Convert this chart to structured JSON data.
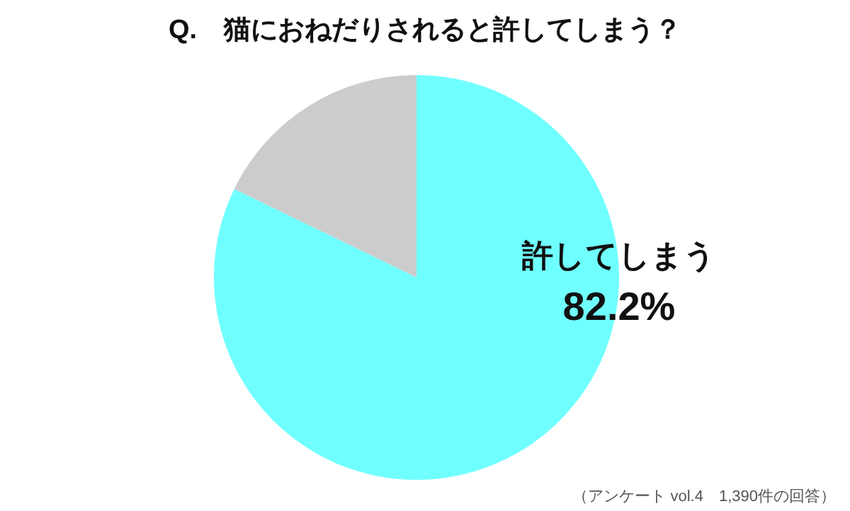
{
  "chart_data": {
    "type": "pie",
    "title": "Q.　猫におねだりされると許してしまう？",
    "categories": [
      "許してしまう",
      null
    ],
    "values": [
      82.2,
      17.8
    ],
    "colors": [
      "#70ffff",
      "#cccccc"
    ],
    "value_labels": [
      "82.2%",
      null
    ],
    "annotations": [
      "（アンケート vol.4　1,390件の回答）"
    ]
  }
}
